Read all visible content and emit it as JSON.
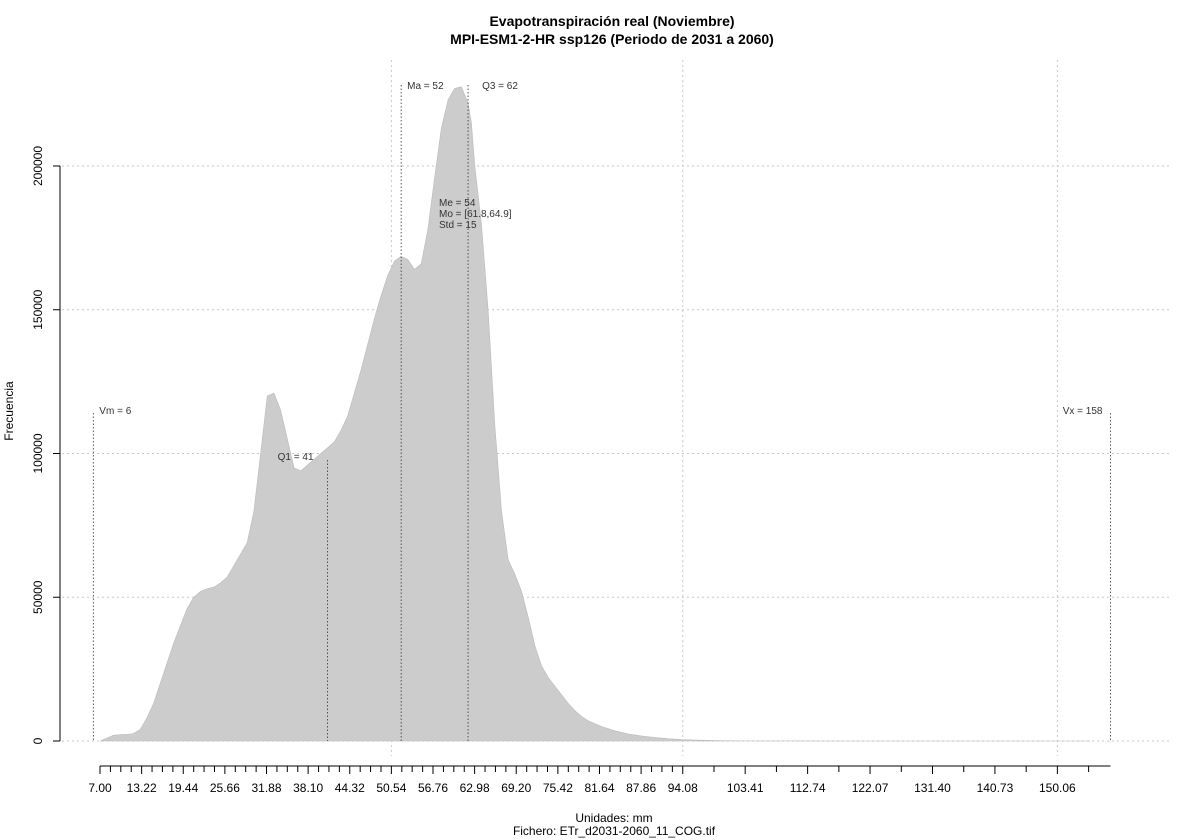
{
  "chart_data": {
    "type": "area",
    "title": "Evapotranspiración real (Noviembre)",
    "subtitle": "MPI-ESM1-2-HR ssp126 (Periodo de 2031 a 2060)",
    "xlabel": "Unidades: mm",
    "ylabel": "Frecuencia",
    "caption": "Fichero: ETr_d2031-2060_11_COG.tif",
    "xlim": [
      6,
      158
    ],
    "ylim": [
      0,
      230000
    ],
    "grid": true,
    "fill_color": "#cccccc",
    "y_ticks": [
      0,
      50000,
      100000,
      150000,
      200000
    ],
    "y_tick_labels": [
      "0",
      "50000",
      "100000",
      "150000",
      "200000"
    ],
    "x_tick_labels": [
      "7.00",
      "13.22",
      "19.44",
      "25.66",
      "31.88",
      "38.10",
      "44.32",
      "50.54",
      "56.76",
      "62.98",
      "69.20",
      "75.42",
      "81.64",
      "87.86",
      "94.08",
      "103.41",
      "112.74",
      "122.07",
      "131.40",
      "140.73",
      "150.06"
    ],
    "x_tick_values": [
      7.0,
      13.22,
      19.44,
      25.66,
      31.88,
      38.1,
      44.32,
      50.54,
      56.76,
      62.98,
      69.2,
      75.42,
      81.64,
      87.86,
      94.08,
      103.41,
      112.74,
      122.07,
      131.4,
      140.73,
      150.06
    ],
    "x_minor_ticks": [
      8.56,
      10.11,
      11.67,
      14.78,
      16.33,
      17.89,
      21.0,
      22.55,
      24.11,
      27.22,
      28.77,
      30.33,
      33.44,
      34.99,
      36.55,
      39.66,
      41.21,
      42.77,
      45.88,
      47.43,
      48.99,
      52.1,
      53.65,
      55.21,
      58.32,
      59.87,
      61.43,
      64.54,
      66.09,
      67.65,
      70.76,
      72.31,
      73.87,
      76.98,
      78.53,
      80.09,
      83.2,
      84.75,
      86.31,
      89.42,
      90.97,
      92.53,
      98.75,
      108.08,
      117.41,
      126.74,
      136.07,
      145.4,
      154.73
    ],
    "x_grid_values": [
      50.54,
      94.08,
      150.06
    ],
    "series": [
      {
        "x": [
          7,
          8,
          9,
          10,
          11,
          12,
          13,
          14,
          15,
          16,
          17,
          18,
          19,
          20,
          21,
          22,
          23,
          24,
          25,
          26,
          27,
          28,
          29,
          30,
          31,
          32,
          33,
          34,
          35,
          36,
          37,
          38,
          39,
          40,
          41,
          42,
          43,
          44,
          45,
          46,
          47,
          48,
          49,
          50,
          51,
          52,
          53,
          54,
          55,
          56,
          57,
          58,
          59,
          60,
          61,
          62,
          62.5,
          63,
          64,
          65,
          66,
          67,
          68,
          69,
          70,
          71,
          72,
          73,
          74,
          75,
          76,
          77,
          78,
          79,
          80,
          82,
          84,
          86,
          88,
          90,
          92,
          94,
          96,
          98,
          100,
          103,
          106,
          110,
          120,
          130,
          140,
          150,
          155
        ],
        "y": [
          0,
          1000,
          2000,
          2200,
          2300,
          2600,
          4000,
          8000,
          13000,
          20000,
          27000,
          34000,
          40000,
          46000,
          50000,
          52000,
          53000,
          53500,
          55000,
          57000,
          61000,
          65000,
          69000,
          80000,
          100000,
          120000,
          121000,
          115000,
          105000,
          95000,
          94000,
          96000,
          98000,
          100000,
          102000,
          104000,
          108000,
          113000,
          121000,
          129000,
          138000,
          147000,
          155000,
          162000,
          167000,
          168500,
          167500,
          164000,
          166000,
          178000,
          196000,
          213000,
          223000,
          227000,
          227500,
          222000,
          215000,
          200000,
          180000,
          150000,
          110000,
          80000,
          63000,
          58000,
          52000,
          43000,
          33000,
          26000,
          22000,
          19000,
          16000,
          13000,
          10500,
          8500,
          7000,
          5000,
          3500,
          2400,
          1700,
          1200,
          800,
          500,
          300,
          200,
          100,
          50,
          30,
          20,
          10,
          0,
          0,
          0,
          0
        ]
      }
    ],
    "vlines": [
      {
        "label": "Vm = 6",
        "x": 6
      },
      {
        "label": "Q1 = 41",
        "x": 41
      },
      {
        "label": "Ma = 52",
        "x": 52
      },
      {
        "label": "Q3 = 62",
        "x": 62
      },
      {
        "label": "Vx = 158",
        "x": 158
      }
    ],
    "stats": [
      "Me = 54",
      "Mo = [61.8,64.9]",
      "Std = 15"
    ]
  }
}
